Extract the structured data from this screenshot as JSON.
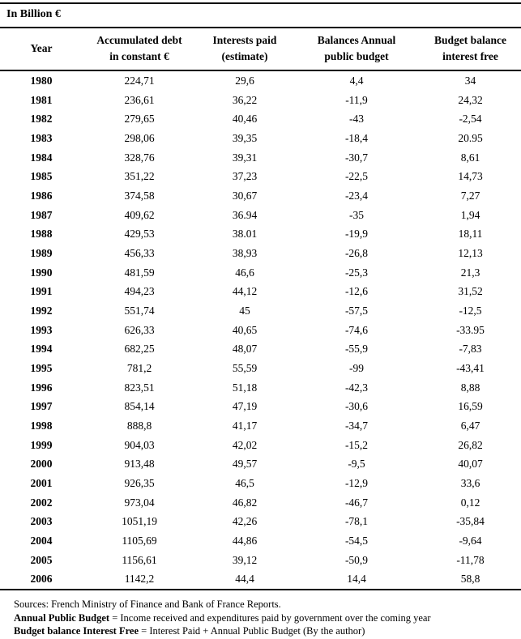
{
  "title": "In Billion €",
  "table": {
    "columns": [
      {
        "label": "Year"
      },
      {
        "label": "Accumulated debt\nin constant €"
      },
      {
        "label": "Interests paid\n(estimate)"
      },
      {
        "label": "Balances Annual\npublic budget"
      },
      {
        "label": "Budget balance\ninterest free"
      }
    ],
    "rows": [
      [
        "1980",
        "224,71",
        "29,6",
        "4,4",
        "34"
      ],
      [
        "1981",
        "236,61",
        "36,22",
        "-11,9",
        "24,32"
      ],
      [
        "1982",
        "279,65",
        "40,46",
        "-43",
        "-2,54"
      ],
      [
        "1983",
        "298,06",
        "39,35",
        "-18,4",
        "20.95"
      ],
      [
        "1984",
        "328,76",
        "39,31",
        "-30,7",
        "8,61"
      ],
      [
        "1985",
        "351,22",
        "37,23",
        "-22,5",
        "14,73"
      ],
      [
        "1986",
        "374,58",
        "30,67",
        "-23,4",
        "7,27"
      ],
      [
        "1987",
        "409,62",
        "36.94",
        "-35",
        "1,94"
      ],
      [
        "1988",
        "429,53",
        "38.01",
        "-19,9",
        "18,11"
      ],
      [
        "1989",
        "456,33",
        "38,93",
        "-26,8",
        "12,13"
      ],
      [
        "1990",
        "481,59",
        "46,6",
        "-25,3",
        "21,3"
      ],
      [
        "1991",
        "494,23",
        "44,12",
        "-12,6",
        "31,52"
      ],
      [
        "1992",
        "551,74",
        "45",
        "-57,5",
        "-12,5"
      ],
      [
        "1993",
        "626,33",
        "40,65",
        "-74,6",
        "-33.95"
      ],
      [
        "1994",
        "682,25",
        "48,07",
        "-55,9",
        "-7,83"
      ],
      [
        "1995",
        "781,2",
        "55,59",
        "-99",
        "-43,41"
      ],
      [
        "1996",
        "823,51",
        "51,18",
        "-42,3",
        "8,88"
      ],
      [
        "1997",
        "854,14",
        "47,19",
        "-30,6",
        "16,59"
      ],
      [
        "1998",
        "888,8",
        "41,17",
        "-34,7",
        "6,47"
      ],
      [
        "1999",
        "904,03",
        "42,02",
        "-15,2",
        "26,82"
      ],
      [
        "2000",
        "913,48",
        "49,57",
        "-9,5",
        "40,07"
      ],
      [
        "2001",
        "926,35",
        "46,5",
        "-12,9",
        "33,6"
      ],
      [
        "2002",
        "973,04",
        "46,82",
        "-46,7",
        "0,12"
      ],
      [
        "2003",
        "1051,19",
        "42,26",
        "-78,1",
        "-35,84"
      ],
      [
        "2004",
        "1105,69",
        "44,86",
        "-54,5",
        "-9,64"
      ],
      [
        "2005",
        "1156,61",
        "39,12",
        "-50,9",
        "-11,78"
      ],
      [
        "2006",
        "1142,2",
        "44,4",
        "14,4",
        "58,8"
      ]
    ]
  },
  "notes": {
    "sources": "Sources: French Ministry of Finance and Bank of France Reports.",
    "note1_term": "Annual Public Budget",
    "note1_text": " = Income received and expenditures paid by government over the coming year",
    "note2_term": "Budget balance Interest Free",
    "note2_text": " = Interest Paid + Annual Public Budget (By the author)"
  }
}
